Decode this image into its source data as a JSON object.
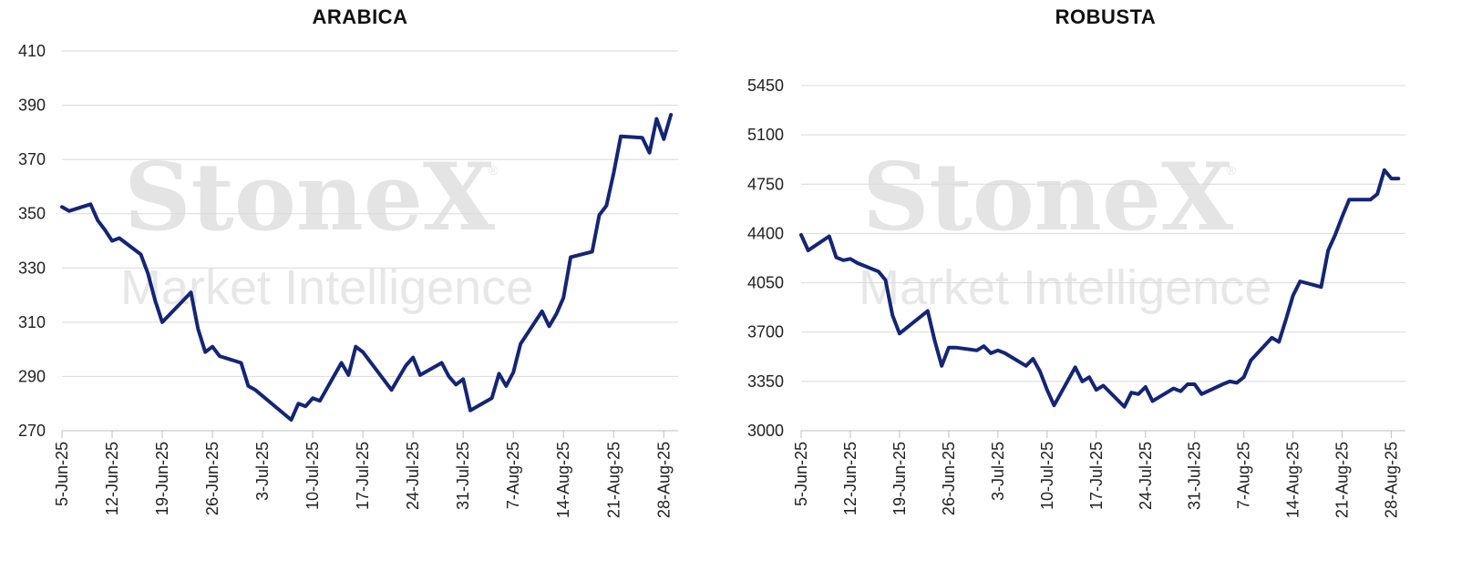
{
  "watermark": {
    "brand": "StoneX",
    "registered": "®",
    "subtitle": "Market Intelligence"
  },
  "chart_data": [
    {
      "type": "line",
      "title": "ARABICA",
      "xlabel": "",
      "ylabel": "",
      "ylim": [
        270,
        410
      ],
      "yticks": [
        270,
        290,
        310,
        330,
        350,
        370,
        390,
        410
      ],
      "xticks": [
        "5-Jun-25",
        "12-Jun-25",
        "19-Jun-25",
        "26-Jun-25",
        "3-Jul-25",
        "10-Jul-25",
        "17-Jul-25",
        "24-Jul-25",
        "31-Jul-25",
        "7-Aug-25",
        "14-Aug-25",
        "21-Aug-25",
        "28-Aug-25"
      ],
      "grid": "horizontal",
      "line_color": "#152575",
      "series": [
        {
          "x": [
            "2025-06-05",
            "2025-06-06",
            "2025-06-09",
            "2025-06-10",
            "2025-06-11",
            "2025-06-12",
            "2025-06-13",
            "2025-06-16",
            "2025-06-17",
            "2025-06-18",
            "2025-06-19",
            "2025-06-23",
            "2025-06-24",
            "2025-06-25",
            "2025-06-26",
            "2025-06-27",
            "2025-06-30",
            "2025-07-01",
            "2025-07-02",
            "2025-07-07",
            "2025-07-08",
            "2025-07-09",
            "2025-07-10",
            "2025-07-11",
            "2025-07-14",
            "2025-07-15",
            "2025-07-16",
            "2025-07-17",
            "2025-07-21",
            "2025-07-22",
            "2025-07-23",
            "2025-07-24",
            "2025-07-25",
            "2025-07-28",
            "2025-07-29",
            "2025-07-30",
            "2025-07-31",
            "2025-08-01",
            "2025-08-04",
            "2025-08-05",
            "2025-08-06",
            "2025-08-07",
            "2025-08-08",
            "2025-08-11",
            "2025-08-12",
            "2025-08-13",
            "2025-08-14",
            "2025-08-15",
            "2025-08-18",
            "2025-08-19",
            "2025-08-20",
            "2025-08-21",
            "2025-08-22",
            "2025-08-25",
            "2025-08-26",
            "2025-08-27",
            "2025-08-28",
            "2025-08-29"
          ],
          "values": [
            352.5,
            351,
            353.5,
            347.5,
            344,
            340,
            341,
            335,
            328,
            318,
            310,
            321,
            307.5,
            299,
            301,
            297.5,
            295,
            286.5,
            285,
            274,
            280,
            279,
            282,
            281,
            295,
            290.5,
            301,
            299,
            285,
            289.5,
            294,
            297,
            290.5,
            295,
            290,
            287,
            289,
            277.5,
            282,
            291,
            286.5,
            291.5,
            302,
            314,
            308.5,
            313,
            319,
            334,
            336,
            349.5,
            353,
            365,
            378.5,
            378,
            372.5,
            385,
            377.5,
            386.5
          ]
        }
      ]
    },
    {
      "type": "line",
      "title": "ROBUSTA",
      "xlabel": "",
      "ylabel": "",
      "ylim": [
        3000,
        5450
      ],
      "yticks": [
        3000,
        3350,
        3700,
        4050,
        4400,
        4750,
        5100,
        5450
      ],
      "xticks": [
        "5-Jun-25",
        "12-Jun-25",
        "19-Jun-25",
        "26-Jun-25",
        "3-Jul-25",
        "10-Jul-25",
        "17-Jul-25",
        "24-Jul-25",
        "31-Jul-25",
        "7-Aug-25",
        "14-Aug-25",
        "21-Aug-25",
        "28-Aug-25"
      ],
      "grid": "horizontal",
      "line_color": "#152575",
      "series": [
        {
          "x": [
            "2025-06-05",
            "2025-06-06",
            "2025-06-09",
            "2025-06-10",
            "2025-06-11",
            "2025-06-12",
            "2025-06-13",
            "2025-06-16",
            "2025-06-17",
            "2025-06-18",
            "2025-06-19",
            "2025-06-23",
            "2025-06-24",
            "2025-06-25",
            "2025-06-26",
            "2025-06-27",
            "2025-06-30",
            "2025-07-01",
            "2025-07-02",
            "2025-07-03",
            "2025-07-04",
            "2025-07-07",
            "2025-07-08",
            "2025-07-09",
            "2025-07-10",
            "2025-07-11",
            "2025-07-14",
            "2025-07-15",
            "2025-07-16",
            "2025-07-17",
            "2025-07-18",
            "2025-07-21",
            "2025-07-22",
            "2025-07-23",
            "2025-07-24",
            "2025-07-25",
            "2025-07-28",
            "2025-07-29",
            "2025-07-30",
            "2025-07-31",
            "2025-08-01",
            "2025-08-04",
            "2025-08-05",
            "2025-08-06",
            "2025-08-07",
            "2025-08-08",
            "2025-08-11",
            "2025-08-12",
            "2025-08-13",
            "2025-08-14",
            "2025-08-15",
            "2025-08-18",
            "2025-08-19",
            "2025-08-20",
            "2025-08-21",
            "2025-08-22",
            "2025-08-25",
            "2025-08-26",
            "2025-08-27",
            "2025-08-28",
            "2025-08-29"
          ],
          "values": [
            4390,
            4280,
            4380,
            4230,
            4210,
            4220,
            4190,
            4130,
            4070,
            3820,
            3690,
            3850,
            3640,
            3460,
            3590,
            3590,
            3570,
            3600,
            3550,
            3570,
            3550,
            3460,
            3510,
            3420,
            3290,
            3180,
            3450,
            3350,
            3380,
            3290,
            3320,
            3170,
            3270,
            3260,
            3310,
            3210,
            3300,
            3280,
            3330,
            3330,
            3260,
            3330,
            3350,
            3340,
            3380,
            3500,
            3660,
            3630,
            3790,
            3960,
            4060,
            4020,
            4280,
            4390,
            4520,
            4640,
            4640,
            4680,
            4850,
            4790,
            4790
          ]
        }
      ]
    }
  ]
}
